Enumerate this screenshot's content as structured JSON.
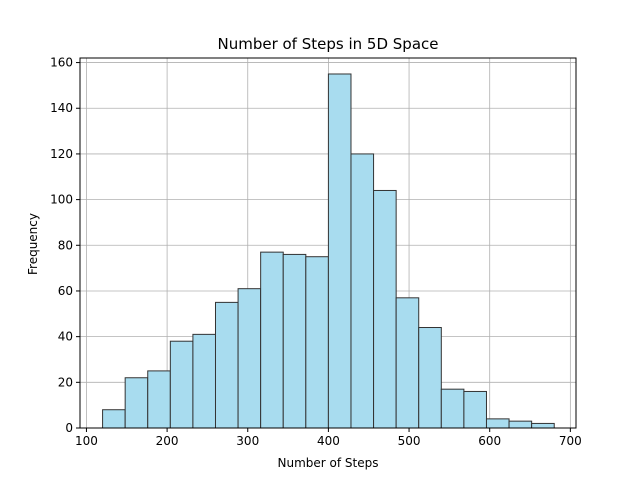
{
  "chart_data": {
    "type": "bar",
    "title": "Number of Steps in 5D Space",
    "xlabel": "Number of Steps",
    "ylabel": "Frequency",
    "xlim": [
      92,
      707
    ],
    "ylim": [
      0,
      162
    ],
    "xticks": [
      100,
      200,
      300,
      400,
      500,
      600,
      700
    ],
    "yticks": [
      0,
      20,
      40,
      60,
      80,
      100,
      120,
      140,
      160
    ],
    "grid": true,
    "bar_color": "#a8dcef",
    "edge_color": "#333333",
    "bins": [
      {
        "x0": 120,
        "x1": 148,
        "value": 8
      },
      {
        "x0": 148,
        "x1": 176,
        "value": 22
      },
      {
        "x0": 176,
        "x1": 204,
        "value": 25
      },
      {
        "x0": 204,
        "x1": 232,
        "value": 38
      },
      {
        "x0": 232,
        "x1": 260,
        "value": 41
      },
      {
        "x0": 260,
        "x1": 288,
        "value": 55
      },
      {
        "x0": 288,
        "x1": 316,
        "value": 61
      },
      {
        "x0": 316,
        "x1": 344,
        "value": 77
      },
      {
        "x0": 344,
        "x1": 372,
        "value": 76
      },
      {
        "x0": 372,
        "x1": 400,
        "value": 75
      },
      {
        "x0": 400,
        "x1": 428,
        "value": 155
      },
      {
        "x0": 428,
        "x1": 456,
        "value": 120
      },
      {
        "x0": 456,
        "x1": 484,
        "value": 104
      },
      {
        "x0": 484,
        "x1": 512,
        "value": 57
      },
      {
        "x0": 512,
        "x1": 540,
        "value": 44
      },
      {
        "x0": 540,
        "x1": 568,
        "value": 17
      },
      {
        "x0": 568,
        "x1": 596,
        "value": 16
      },
      {
        "x0": 596,
        "x1": 624,
        "value": 4
      },
      {
        "x0": 624,
        "x1": 652,
        "value": 3
      },
      {
        "x0": 652,
        "x1": 680,
        "value": 2
      }
    ]
  }
}
